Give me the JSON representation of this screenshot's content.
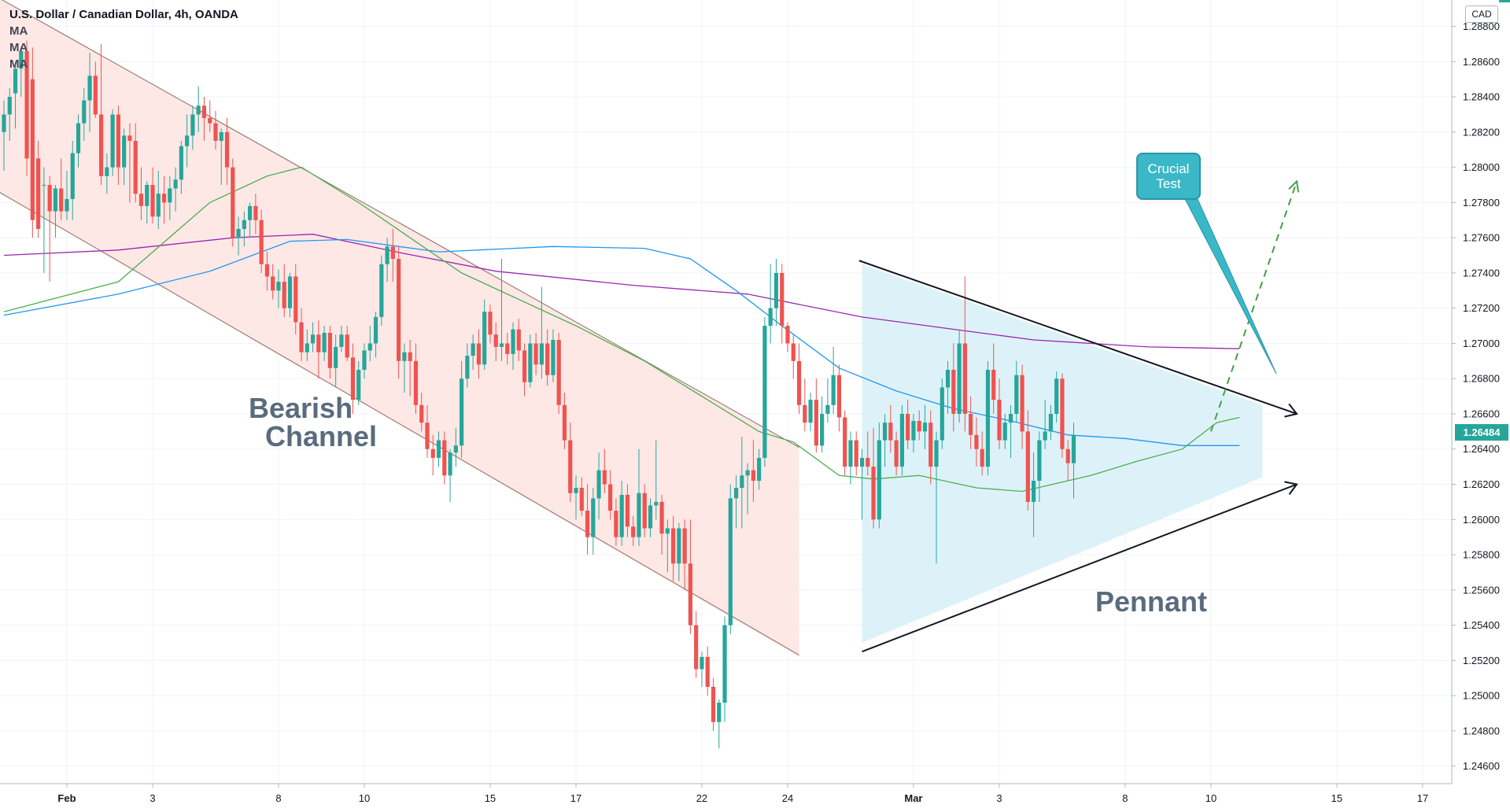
{
  "legend": {
    "title": "U.S. Dollar / Canadian Dollar, 4h, OANDA",
    "ma_labels": [
      "MA",
      "MA",
      "MA"
    ]
  },
  "currency_badge": "CAD",
  "last_price_label": "1.26484",
  "annotations": {
    "bearish_line1": "Bearish",
    "bearish_line2": "Channel",
    "pennant": "Pennant",
    "callout_line1": "Crucial",
    "callout_line2": "Test"
  },
  "colors": {
    "up": "#26a69a",
    "down": "#ef5350",
    "ma_fast": "#4caf50",
    "ma_mid": "#2196f3",
    "ma_slow": "#9c27b0",
    "channel_fill": "#fde4e2",
    "pennant_fill": "#d9f1f7",
    "breakout_arrow": "#43a047"
  },
  "chart_data": {
    "type": "candlestick",
    "series_name": "USDCAD 4h",
    "ylim": [
      1.245,
      1.2895
    ],
    "y_ticks": [
      "1.28800",
      "1.28600",
      "1.28400",
      "1.28200",
      "1.28000",
      "1.27800",
      "1.27600",
      "1.27400",
      "1.27200",
      "1.27000",
      "1.26800",
      "1.26600",
      "1.26400",
      "1.26200",
      "1.26000",
      "1.25800",
      "1.25600",
      "1.25400",
      "1.25200",
      "1.25000",
      "1.24800",
      "1.24600"
    ],
    "x_ticks": [
      {
        "label": "Feb",
        "bar": 11
      },
      {
        "label": "3",
        "bar": 26
      },
      {
        "label": "8",
        "bar": 48
      },
      {
        "label": "10",
        "bar": 63
      },
      {
        "label": "15",
        "bar": 85
      },
      {
        "label": "17",
        "bar": 100
      },
      {
        "label": "22",
        "bar": 122
      },
      {
        "label": "24",
        "bar": 137
      },
      {
        "label": "Mar",
        "bar": 159
      },
      {
        "label": "3",
        "bar": 174
      },
      {
        "label": "8",
        "bar": 196
      },
      {
        "label": "10",
        "bar": 211
      },
      {
        "label": "15",
        "bar": 233
      },
      {
        "label": "17",
        "bar": 248
      }
    ],
    "ohlc": [
      [
        1.282,
        1.2838,
        1.2798,
        1.283
      ],
      [
        1.283,
        1.2845,
        1.2815,
        1.284
      ],
      [
        1.2842,
        1.286,
        1.2822,
        1.2856
      ],
      [
        1.2856,
        1.2868,
        1.284,
        1.2866
      ],
      [
        1.2866,
        1.2872,
        1.2795,
        1.2805
      ],
      [
        1.285,
        1.2868,
        1.276,
        1.277
      ],
      [
        1.2805,
        1.2815,
        1.276,
        1.2765
      ],
      [
        1.279,
        1.28,
        1.274,
        1.279
      ],
      [
        1.279,
        1.2795,
        1.2735,
        1.2775
      ],
      [
        1.2775,
        1.279,
        1.276,
        1.2788
      ],
      [
        1.2788,
        1.2805,
        1.277,
        1.2775
      ],
      [
        1.2775,
        1.2798,
        1.277,
        1.2782
      ],
      [
        1.2782,
        1.2815,
        1.277,
        1.2808
      ],
      [
        1.2808,
        1.283,
        1.28,
        1.2825
      ],
      [
        1.2825,
        1.2845,
        1.2815,
        1.2838
      ],
      [
        1.2838,
        1.2865,
        1.282,
        1.2852
      ],
      [
        1.2852,
        1.286,
        1.2828,
        1.283
      ],
      [
        1.283,
        1.287,
        1.279,
        1.2795
      ],
      [
        1.2795,
        1.2808,
        1.2785,
        1.28
      ],
      [
        1.28,
        1.2833,
        1.2795,
        1.283
      ],
      [
        1.283,
        1.2835,
        1.279,
        1.28
      ],
      [
        1.28,
        1.2822,
        1.279,
        1.2818
      ],
      [
        1.2818,
        1.2825,
        1.278,
        1.2815
      ],
      [
        1.2815,
        1.2825,
        1.278,
        1.2785
      ],
      [
        1.2785,
        1.28,
        1.277,
        1.2778
      ],
      [
        1.2778,
        1.2792,
        1.2768,
        1.279
      ],
      [
        1.279,
        1.28,
        1.2768,
        1.2772
      ],
      [
        1.2772,
        1.2798,
        1.2765,
        1.2785
      ],
      [
        1.2785,
        1.2795,
        1.2768,
        1.278
      ],
      [
        1.278,
        1.2795,
        1.277,
        1.2788
      ],
      [
        1.2788,
        1.28,
        1.2775,
        1.2793
      ],
      [
        1.2793,
        1.2815,
        1.2785,
        1.2812
      ],
      [
        1.2812,
        1.283,
        1.28,
        1.2818
      ],
      [
        1.2818,
        1.2835,
        1.281,
        1.283
      ],
      [
        1.283,
        1.2846,
        1.282,
        1.2835
      ],
      [
        1.2835,
        1.284,
        1.2815,
        1.2828
      ],
      [
        1.2828,
        1.2838,
        1.282,
        1.2825
      ],
      [
        1.2825,
        1.2832,
        1.281,
        1.2815
      ],
      [
        1.2815,
        1.2822,
        1.279,
        1.282
      ],
      [
        1.282,
        1.2828,
        1.279,
        1.28
      ],
      [
        1.28,
        1.2805,
        1.2755,
        1.276
      ],
      [
        1.276,
        1.2772,
        1.275,
        1.2765
      ],
      [
        1.2765,
        1.2775,
        1.2755,
        1.277
      ],
      [
        1.277,
        1.278,
        1.276,
        1.2778
      ],
      [
        1.2778,
        1.2785,
        1.2762,
        1.277
      ],
      [
        1.277,
        1.2776,
        1.274,
        1.2745
      ],
      [
        1.2745,
        1.2752,
        1.273,
        1.2738
      ],
      [
        1.2738,
        1.2745,
        1.2725,
        1.273
      ],
      [
        1.273,
        1.2742,
        1.272,
        1.2735
      ],
      [
        1.2735,
        1.2745,
        1.2715,
        1.272
      ],
      [
        1.272,
        1.274,
        1.2715,
        1.2738
      ],
      [
        1.2738,
        1.2745,
        1.2705,
        1.2712
      ],
      [
        1.2712,
        1.272,
        1.269,
        1.2695
      ],
      [
        1.2695,
        1.2708,
        1.269,
        1.27
      ],
      [
        1.27,
        1.2712,
        1.2695,
        1.2705
      ],
      [
        1.2705,
        1.2713,
        1.268,
        1.2695
      ],
      [
        1.2695,
        1.271,
        1.269,
        1.2706
      ],
      [
        1.2706,
        1.271,
        1.268,
        1.2686
      ],
      [
        1.2686,
        1.2705,
        1.2675,
        1.2698
      ],
      [
        1.2698,
        1.271,
        1.2695,
        1.2705
      ],
      [
        1.2705,
        1.271,
        1.269,
        1.2692
      ],
      [
        1.2692,
        1.27,
        1.266,
        1.2668
      ],
      [
        1.2668,
        1.269,
        1.2665,
        1.2685
      ],
      [
        1.2685,
        1.27,
        1.268,
        1.2696
      ],
      [
        1.2696,
        1.271,
        1.269,
        1.27
      ],
      [
        1.27,
        1.2718,
        1.2692,
        1.2715
      ],
      [
        1.2715,
        1.275,
        1.271,
        1.2745
      ],
      [
        1.2745,
        1.276,
        1.2735,
        1.2755
      ],
      [
        1.2755,
        1.2765,
        1.2735,
        1.2748
      ],
      [
        1.2748,
        1.2755,
        1.268,
        1.269
      ],
      [
        1.269,
        1.27,
        1.2672,
        1.2695
      ],
      [
        1.2695,
        1.2702,
        1.267,
        1.269
      ],
      [
        1.269,
        1.27,
        1.266,
        1.2665
      ],
      [
        1.2665,
        1.2672,
        1.265,
        1.2655
      ],
      [
        1.2655,
        1.2665,
        1.2635,
        1.264
      ],
      [
        1.264,
        1.2648,
        1.2625,
        1.2635
      ],
      [
        1.2635,
        1.265,
        1.263,
        1.2645
      ],
      [
        1.2645,
        1.265,
        1.262,
        1.2625
      ],
      [
        1.2625,
        1.264,
        1.261,
        1.2638
      ],
      [
        1.2638,
        1.2652,
        1.263,
        1.2642
      ],
      [
        1.2642,
        1.269,
        1.2635,
        1.268
      ],
      [
        1.268,
        1.27,
        1.2675,
        1.2693
      ],
      [
        1.2693,
        1.2705,
        1.2685,
        1.27
      ],
      [
        1.27,
        1.2708,
        1.268,
        1.2688
      ],
      [
        1.2688,
        1.2725,
        1.2685,
        1.2718
      ],
      [
        1.2718,
        1.2722,
        1.27,
        1.2705
      ],
      [
        1.2705,
        1.2712,
        1.269,
        1.2698
      ],
      [
        1.2698,
        1.2748,
        1.269,
        1.27
      ],
      [
        1.27,
        1.2706,
        1.2688,
        1.2694
      ],
      [
        1.2694,
        1.2712,
        1.2685,
        1.2708
      ],
      [
        1.2708,
        1.2714,
        1.269,
        1.2696
      ],
      [
        1.2696,
        1.27,
        1.267,
        1.2678
      ],
      [
        1.2678,
        1.2705,
        1.2675,
        1.27
      ],
      [
        1.27,
        1.2706,
        1.2682,
        1.2688
      ],
      [
        1.2688,
        1.2732,
        1.268,
        1.27
      ],
      [
        1.27,
        1.2708,
        1.2676,
        1.2682
      ],
      [
        1.2682,
        1.2708,
        1.2678,
        1.2702
      ],
      [
        1.2702,
        1.2706,
        1.266,
        1.2665
      ],
      [
        1.2665,
        1.2672,
        1.264,
        1.2645
      ],
      [
        1.2645,
        1.2655,
        1.261,
        1.2615
      ],
      [
        1.2615,
        1.2625,
        1.26,
        1.2618
      ],
      [
        1.2618,
        1.2624,
        1.2602,
        1.2605
      ],
      [
        1.2605,
        1.262,
        1.258,
        1.259
      ],
      [
        1.259,
        1.2618,
        1.258,
        1.2612
      ],
      [
        1.2612,
        1.2638,
        1.26,
        1.2628
      ],
      [
        1.2628,
        1.264,
        1.2615,
        1.262
      ],
      [
        1.262,
        1.2628,
        1.26,
        1.2605
      ],
      [
        1.2605,
        1.2612,
        1.2585,
        1.259
      ],
      [
        1.259,
        1.2622,
        1.2585,
        1.2614
      ],
      [
        1.2614,
        1.262,
        1.259,
        1.2596
      ],
      [
        1.2596,
        1.2602,
        1.2585,
        1.259
      ],
      [
        1.259,
        1.264,
        1.2585,
        1.2615
      ],
      [
        1.2615,
        1.262,
        1.259,
        1.2595
      ],
      [
        1.2595,
        1.2612,
        1.259,
        1.2608
      ],
      [
        1.2608,
        1.2645,
        1.26,
        1.261
      ],
      [
        1.261,
        1.2614,
        1.258,
        1.2592
      ],
      [
        1.2592,
        1.26,
        1.257,
        1.2595
      ],
      [
        1.2595,
        1.2602,
        1.2565,
        1.2575
      ],
      [
        1.2575,
        1.2598,
        1.2565,
        1.2595
      ],
      [
        1.2595,
        1.26,
        1.256,
        1.2575
      ],
      [
        1.2575,
        1.26,
        1.2535,
        1.254
      ],
      [
        1.254,
        1.2548,
        1.251,
        1.2515
      ],
      [
        1.2515,
        1.2525,
        1.2505,
        1.2522
      ],
      [
        1.2522,
        1.2528,
        1.25,
        1.2505
      ],
      [
        1.2505,
        1.251,
        1.248,
        1.2485
      ],
      [
        1.2485,
        1.2498,
        1.247,
        1.2496
      ],
      [
        1.2496,
        1.2545,
        1.2485,
        1.254
      ],
      [
        1.254,
        1.262,
        1.2535,
        1.2612
      ],
      [
        1.2612,
        1.2625,
        1.2595,
        1.2618
      ],
      [
        1.2618,
        1.2647,
        1.2595,
        1.2625
      ],
      [
        1.2625,
        1.2632,
        1.2603,
        1.2628
      ],
      [
        1.2628,
        1.2645,
        1.261,
        1.2622
      ],
      [
        1.2622,
        1.264,
        1.2617,
        1.2635
      ],
      [
        1.2635,
        1.2715,
        1.263,
        1.271
      ],
      [
        1.271,
        1.2745,
        1.27,
        1.272
      ],
      [
        1.272,
        1.2748,
        1.271,
        1.274
      ],
      [
        1.274,
        1.2745,
        1.27,
        1.271
      ],
      [
        1.271,
        1.2712,
        1.2695,
        1.27
      ],
      [
        1.27,
        1.2705,
        1.268,
        1.269
      ],
      [
        1.269,
        1.27,
        1.266,
        1.2665
      ],
      [
        1.2665,
        1.268,
        1.265,
        1.2655
      ],
      [
        1.2655,
        1.2672,
        1.265,
        1.2668
      ],
      [
        1.2668,
        1.268,
        1.2638,
        1.2642
      ],
      [
        1.2642,
        1.267,
        1.2638,
        1.266
      ],
      [
        1.266,
        1.268,
        1.2655,
        1.2665
      ],
      [
        1.2665,
        1.2698,
        1.266,
        1.2682
      ],
      [
        1.2682,
        1.2688,
        1.265,
        1.2658
      ],
      [
        1.2658,
        1.2662,
        1.2625,
        1.263
      ],
      [
        1.263,
        1.265,
        1.262,
        1.2645
      ],
      [
        1.2645,
        1.265,
        1.2625,
        1.263
      ],
      [
        1.263,
        1.264,
        1.26,
        1.2635
      ],
      [
        1.2635,
        1.265,
        1.2625,
        1.263
      ],
      [
        1.263,
        1.2652,
        1.2595,
        1.26
      ],
      [
        1.26,
        1.2655,
        1.2595,
        1.2645
      ],
      [
        1.2645,
        1.266,
        1.263,
        1.2655
      ],
      [
        1.2655,
        1.2665,
        1.2638,
        1.2645
      ],
      [
        1.2645,
        1.265,
        1.2625,
        1.263
      ],
      [
        1.263,
        1.2665,
        1.2625,
        1.266
      ],
      [
        1.266,
        1.2668,
        1.264,
        1.2645
      ],
      [
        1.2645,
        1.266,
        1.2638,
        1.2656
      ],
      [
        1.2656,
        1.2662,
        1.2645,
        1.265
      ],
      [
        1.265,
        1.2665,
        1.264,
        1.2655
      ],
      [
        1.2655,
        1.2662,
        1.262,
        1.263
      ],
      [
        1.263,
        1.265,
        1.2575,
        1.2645
      ],
      [
        1.2645,
        1.268,
        1.264,
        1.2675
      ],
      [
        1.2675,
        1.269,
        1.266,
        1.2685
      ],
      [
        1.2685,
        1.27,
        1.265,
        1.266
      ],
      [
        1.266,
        1.2708,
        1.2655,
        1.27
      ],
      [
        1.27,
        1.2738,
        1.265,
        1.266
      ],
      [
        1.266,
        1.267,
        1.264,
        1.2648
      ],
      [
        1.2648,
        1.2658,
        1.263,
        1.264
      ],
      [
        1.264,
        1.265,
        1.2625,
        1.263
      ],
      [
        1.263,
        1.269,
        1.2625,
        1.2685
      ],
      [
        1.2685,
        1.27,
        1.266,
        1.2668
      ],
      [
        1.2668,
        1.268,
        1.264,
        1.2645
      ],
      [
        1.2645,
        1.266,
        1.264,
        1.2655
      ],
      [
        1.2655,
        1.2665,
        1.2635,
        1.266
      ],
      [
        1.266,
        1.269,
        1.2655,
        1.2682
      ],
      [
        1.2682,
        1.2688,
        1.264,
        1.265
      ],
      [
        1.265,
        1.2662,
        1.2605,
        1.261
      ],
      [
        1.261,
        1.2638,
        1.259,
        1.2622
      ],
      [
        1.2622,
        1.265,
        1.261,
        1.2645
      ],
      [
        1.2645,
        1.2668,
        1.264,
        1.265
      ],
      [
        1.265,
        1.2665,
        1.2645,
        1.266
      ],
      [
        1.266,
        1.2684,
        1.2655,
        1.268
      ],
      [
        1.268,
        1.2683,
        1.2635,
        1.264
      ],
      [
        1.264,
        1.2645,
        1.2622,
        1.2632
      ],
      [
        1.2632,
        1.2655,
        1.2612,
        1.2648
      ]
    ],
    "moving_averages": {
      "fast": [
        [
          0,
          1.2718
        ],
        [
          20,
          1.2735
        ],
        [
          36,
          1.278
        ],
        [
          46,
          1.2795
        ],
        [
          52,
          1.28
        ],
        [
          62,
          1.278
        ],
        [
          80,
          1.274
        ],
        [
          100,
          1.271
        ],
        [
          112,
          1.269
        ],
        [
          122,
          1.267
        ],
        [
          132,
          1.265
        ],
        [
          138,
          1.2644
        ],
        [
          146,
          1.2625
        ],
        [
          152,
          1.2623
        ],
        [
          160,
          1.2625
        ],
        [
          170,
          1.2618
        ],
        [
          178,
          1.2616
        ],
        [
          190,
          1.2625
        ],
        [
          198,
          1.2633
        ],
        [
          206,
          1.264
        ],
        [
          212,
          1.2655
        ],
        [
          216,
          1.2658
        ]
      ],
      "mid": [
        [
          0,
          1.2716
        ],
        [
          20,
          1.2728
        ],
        [
          36,
          1.2741
        ],
        [
          50,
          1.2758
        ],
        [
          60,
          1.2759
        ],
        [
          76,
          1.2752
        ],
        [
          96,
          1.2755
        ],
        [
          112,
          1.2754
        ],
        [
          120,
          1.2748
        ],
        [
          128,
          1.273
        ],
        [
          136,
          1.271
        ],
        [
          146,
          1.2686
        ],
        [
          156,
          1.2673
        ],
        [
          166,
          1.2663
        ],
        [
          176,
          1.2656
        ],
        [
          186,
          1.2648
        ],
        [
          196,
          1.2646
        ],
        [
          206,
          1.2642
        ],
        [
          216,
          1.2642
        ]
      ],
      "slow": [
        [
          0,
          1.275
        ],
        [
          20,
          1.2753
        ],
        [
          40,
          1.276
        ],
        [
          54,
          1.2762
        ],
        [
          70,
          1.2751
        ],
        [
          86,
          1.2741
        ],
        [
          110,
          1.2733
        ],
        [
          130,
          1.2728
        ],
        [
          150,
          1.2715
        ],
        [
          166,
          1.2708
        ],
        [
          180,
          1.2702
        ],
        [
          200,
          1.2698
        ],
        [
          216,
          1.2697
        ]
      ]
    },
    "last_price": 1.26484
  }
}
